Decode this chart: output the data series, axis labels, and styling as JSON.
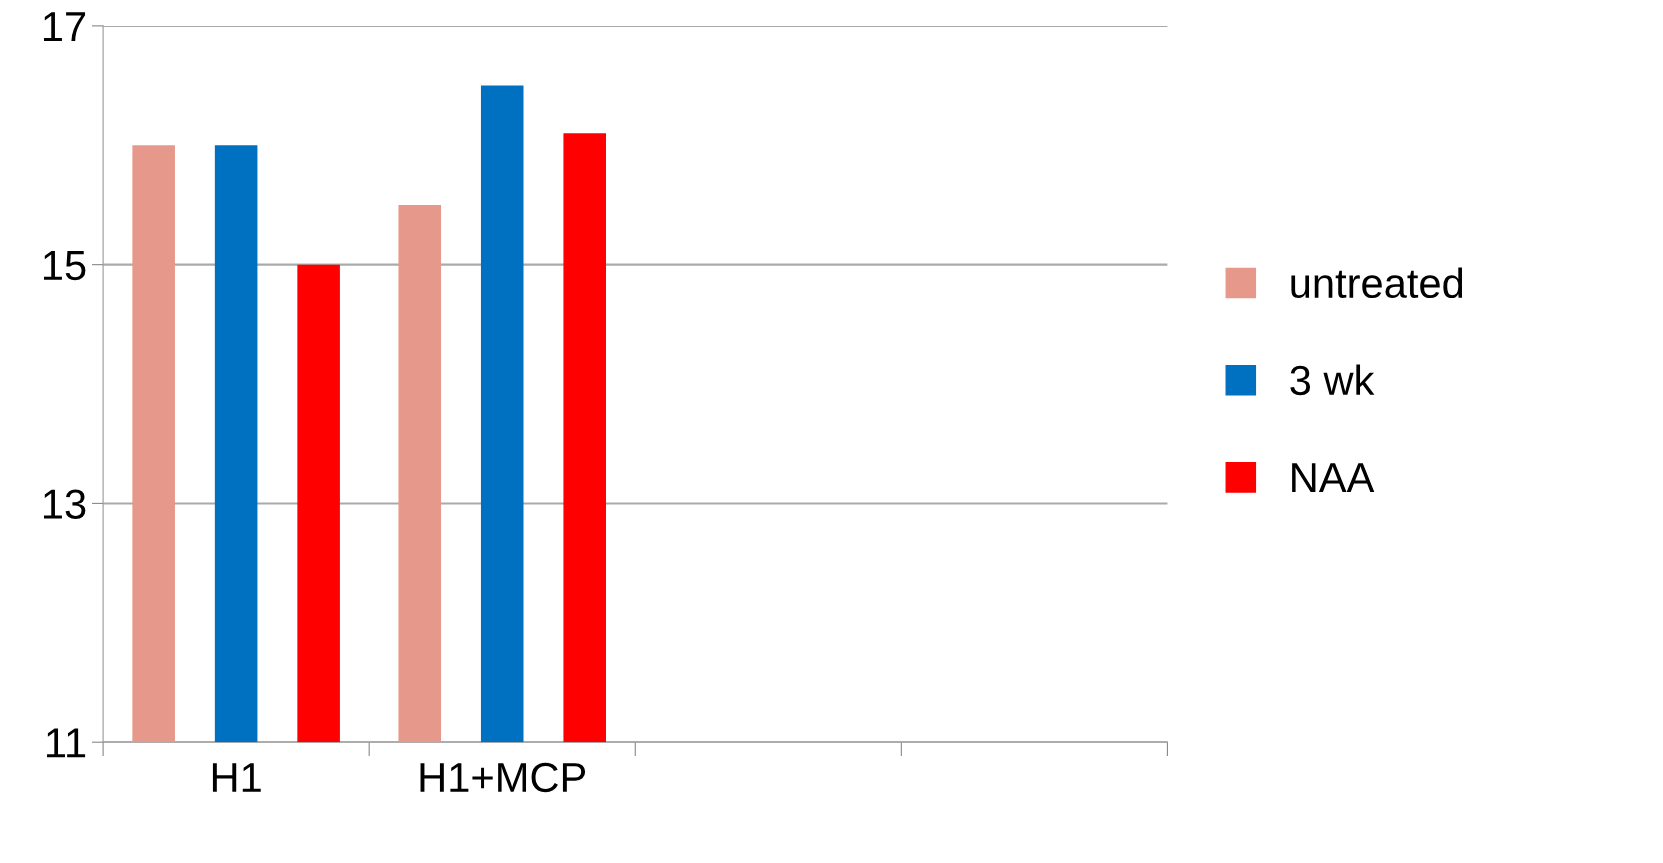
{
  "chart_data": {
    "type": "bar",
    "categories": [
      "H1",
      "H1+MCP",
      null,
      null
    ],
    "series": [
      {
        "name": "untreated",
        "color": "#e6998a",
        "values": [
          16,
          15.5,
          null,
          null
        ]
      },
      {
        "name": "3 wk",
        "color": "#0070c0",
        "values": [
          16,
          16.5,
          null,
          null
        ]
      },
      {
        "name": "NAA",
        "color": "#ff0000",
        "values": [
          15,
          16.1,
          null,
          null
        ]
      }
    ],
    "ylim": [
      11,
      17
    ],
    "yticks": [
      11,
      13,
      15,
      17
    ],
    "grid": "y",
    "legend": "right"
  }
}
